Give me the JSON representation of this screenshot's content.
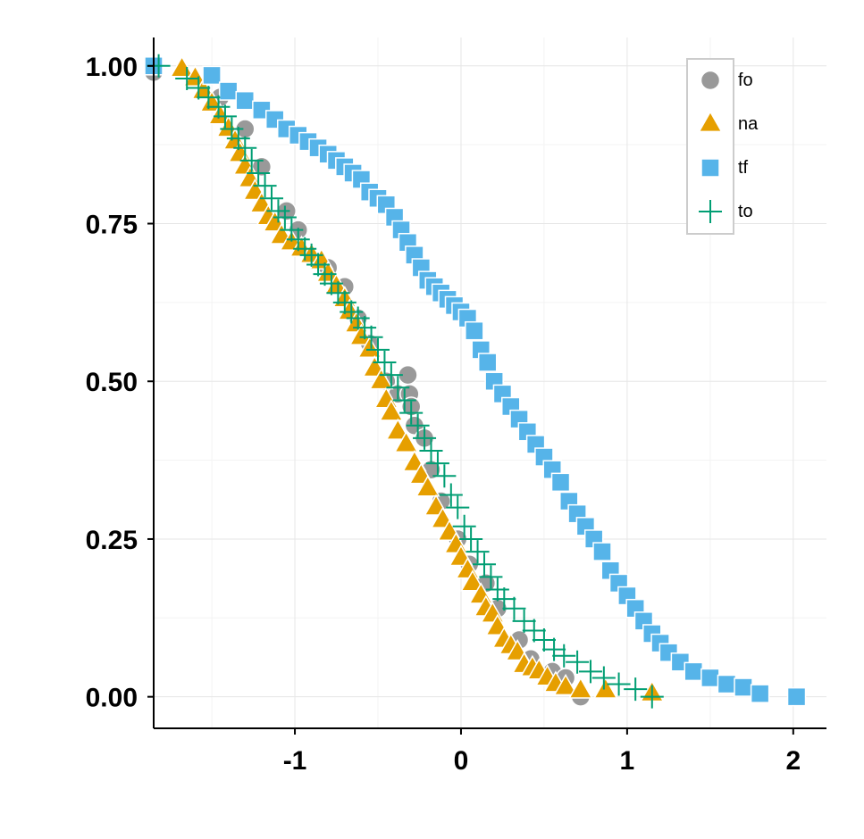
{
  "chart_data": {
    "type": "scatter",
    "title": "",
    "xlabel": "",
    "ylabel": "",
    "xlim": [
      -1.85,
      2.2
    ],
    "ylim": [
      -0.05,
      1.045
    ],
    "x_ticks": [
      -1,
      0,
      1,
      2
    ],
    "x_tick_labels": [
      "-1",
      "0",
      "1",
      "2"
    ],
    "y_ticks": [
      0,
      0.25,
      0.5,
      0.75,
      1
    ],
    "y_tick_labels": [
      "0.00",
      "0.25",
      "0.50",
      "0.75",
      "1.00"
    ],
    "grid": true,
    "legend_position": "top-right",
    "series": [
      {
        "name": "fo",
        "shape": "circle",
        "color": "#999999",
        "x": [
          -1.85,
          -1.45,
          -1.3,
          -1.2,
          -1.05,
          -0.98,
          -0.8,
          -0.7,
          -0.62,
          -0.55,
          -0.45,
          -0.38,
          -0.32,
          -0.31,
          -0.3,
          -0.28,
          -0.22,
          -0.18,
          -0.12,
          -0.02,
          0.05,
          0.15,
          0.22,
          0.35,
          0.42,
          0.55,
          0.63,
          0.72
        ],
        "y": [
          0.99,
          0.95,
          0.9,
          0.84,
          0.77,
          0.74,
          0.68,
          0.65,
          0.6,
          0.56,
          0.5,
          0.48,
          0.51,
          0.48,
          0.46,
          0.43,
          0.41,
          0.36,
          0.31,
          0.25,
          0.21,
          0.18,
          0.14,
          0.09,
          0.06,
          0.04,
          0.03,
          0.0
        ]
      },
      {
        "name": "na",
        "shape": "triangle",
        "color": "#E69F00",
        "x": [
          -1.68,
          -1.6,
          -1.55,
          -1.5,
          -1.45,
          -1.4,
          -1.36,
          -1.33,
          -1.3,
          -1.27,
          -1.24,
          -1.2,
          -1.16,
          -1.12,
          -1.08,
          -1.02,
          -0.96,
          -0.9,
          -0.84,
          -0.8,
          -0.75,
          -0.7,
          -0.67,
          -0.63,
          -0.6,
          -0.55,
          -0.52,
          -0.48,
          -0.45,
          -0.42,
          -0.38,
          -0.33,
          -0.28,
          -0.24,
          -0.2,
          -0.15,
          -0.11,
          -0.07,
          -0.03,
          0.0,
          0.04,
          0.07,
          0.12,
          0.15,
          0.19,
          0.22,
          0.26,
          0.3,
          0.34,
          0.38,
          0.43,
          0.47,
          0.52,
          0.57,
          0.63,
          0.72,
          0.87,
          1.15
        ],
        "y": [
          0.995,
          0.98,
          0.96,
          0.94,
          0.92,
          0.9,
          0.88,
          0.86,
          0.84,
          0.82,
          0.8,
          0.78,
          0.76,
          0.75,
          0.73,
          0.72,
          0.71,
          0.7,
          0.69,
          0.67,
          0.65,
          0.63,
          0.61,
          0.59,
          0.57,
          0.55,
          0.52,
          0.5,
          0.47,
          0.45,
          0.42,
          0.4,
          0.37,
          0.35,
          0.33,
          0.3,
          0.28,
          0.26,
          0.24,
          0.22,
          0.2,
          0.18,
          0.16,
          0.14,
          0.13,
          0.11,
          0.09,
          0.08,
          0.07,
          0.05,
          0.045,
          0.04,
          0.03,
          0.02,
          0.015,
          0.01,
          0.01,
          0.005
        ]
      },
      {
        "name": "tf",
        "shape": "square",
        "color": "#56B4E9",
        "x": [
          -1.85,
          -1.5,
          -1.4,
          -1.3,
          -1.2,
          -1.12,
          -1.05,
          -0.98,
          -0.92,
          -0.86,
          -0.8,
          -0.75,
          -0.7,
          -0.65,
          -0.6,
          -0.55,
          -0.5,
          -0.45,
          -0.4,
          -0.36,
          -0.32,
          -0.28,
          -0.24,
          -0.2,
          -0.16,
          -0.12,
          -0.08,
          -0.04,
          0.0,
          0.04,
          0.08,
          0.12,
          0.16,
          0.2,
          0.25,
          0.3,
          0.35,
          0.4,
          0.45,
          0.5,
          0.55,
          0.6,
          0.65,
          0.7,
          0.75,
          0.8,
          0.85,
          0.9,
          0.95,
          1.0,
          1.05,
          1.1,
          1.15,
          1.2,
          1.25,
          1.32,
          1.4,
          1.5,
          1.6,
          1.7,
          1.8,
          2.02
        ],
        "y": [
          1.0,
          0.985,
          0.96,
          0.945,
          0.93,
          0.915,
          0.9,
          0.89,
          0.88,
          0.87,
          0.86,
          0.85,
          0.84,
          0.83,
          0.82,
          0.8,
          0.79,
          0.78,
          0.76,
          0.74,
          0.72,
          0.7,
          0.68,
          0.66,
          0.65,
          0.64,
          0.63,
          0.62,
          0.61,
          0.6,
          0.58,
          0.55,
          0.53,
          0.5,
          0.48,
          0.46,
          0.44,
          0.42,
          0.4,
          0.38,
          0.36,
          0.34,
          0.31,
          0.29,
          0.27,
          0.25,
          0.23,
          0.2,
          0.18,
          0.16,
          0.14,
          0.12,
          0.1,
          0.085,
          0.07,
          0.055,
          0.04,
          0.03,
          0.02,
          0.015,
          0.005,
          0.0
        ]
      },
      {
        "name": "to",
        "shape": "plus",
        "color": "#009E73",
        "x": [
          -1.82,
          -1.65,
          -1.58,
          -1.52,
          -1.46,
          -1.42,
          -1.38,
          -1.34,
          -1.3,
          -1.26,
          -1.22,
          -1.18,
          -1.14,
          -1.1,
          -1.06,
          -1.02,
          -0.98,
          -0.94,
          -0.9,
          -0.86,
          -0.82,
          -0.78,
          -0.74,
          -0.7,
          -0.66,
          -0.62,
          -0.58,
          -0.54,
          -0.5,
          -0.46,
          -0.42,
          -0.38,
          -0.34,
          -0.3,
          -0.26,
          -0.22,
          -0.18,
          -0.14,
          -0.1,
          -0.06,
          -0.02,
          0.02,
          0.06,
          0.1,
          0.14,
          0.18,
          0.22,
          0.26,
          0.32,
          0.38,
          0.44,
          0.5,
          0.56,
          0.62,
          0.7,
          0.78,
          0.86,
          0.95,
          1.05,
          1.15
        ],
        "y": [
          1.0,
          0.98,
          0.965,
          0.95,
          0.935,
          0.92,
          0.9,
          0.885,
          0.87,
          0.85,
          0.83,
          0.81,
          0.79,
          0.77,
          0.76,
          0.74,
          0.725,
          0.71,
          0.7,
          0.685,
          0.67,
          0.655,
          0.64,
          0.625,
          0.61,
          0.6,
          0.585,
          0.57,
          0.55,
          0.53,
          0.51,
          0.49,
          0.47,
          0.45,
          0.43,
          0.41,
          0.39,
          0.37,
          0.35,
          0.32,
          0.3,
          0.27,
          0.25,
          0.23,
          0.21,
          0.19,
          0.17,
          0.155,
          0.14,
          0.12,
          0.105,
          0.09,
          0.075,
          0.065,
          0.055,
          0.04,
          0.03,
          0.02,
          0.012,
          0.0
        ]
      }
    ]
  }
}
